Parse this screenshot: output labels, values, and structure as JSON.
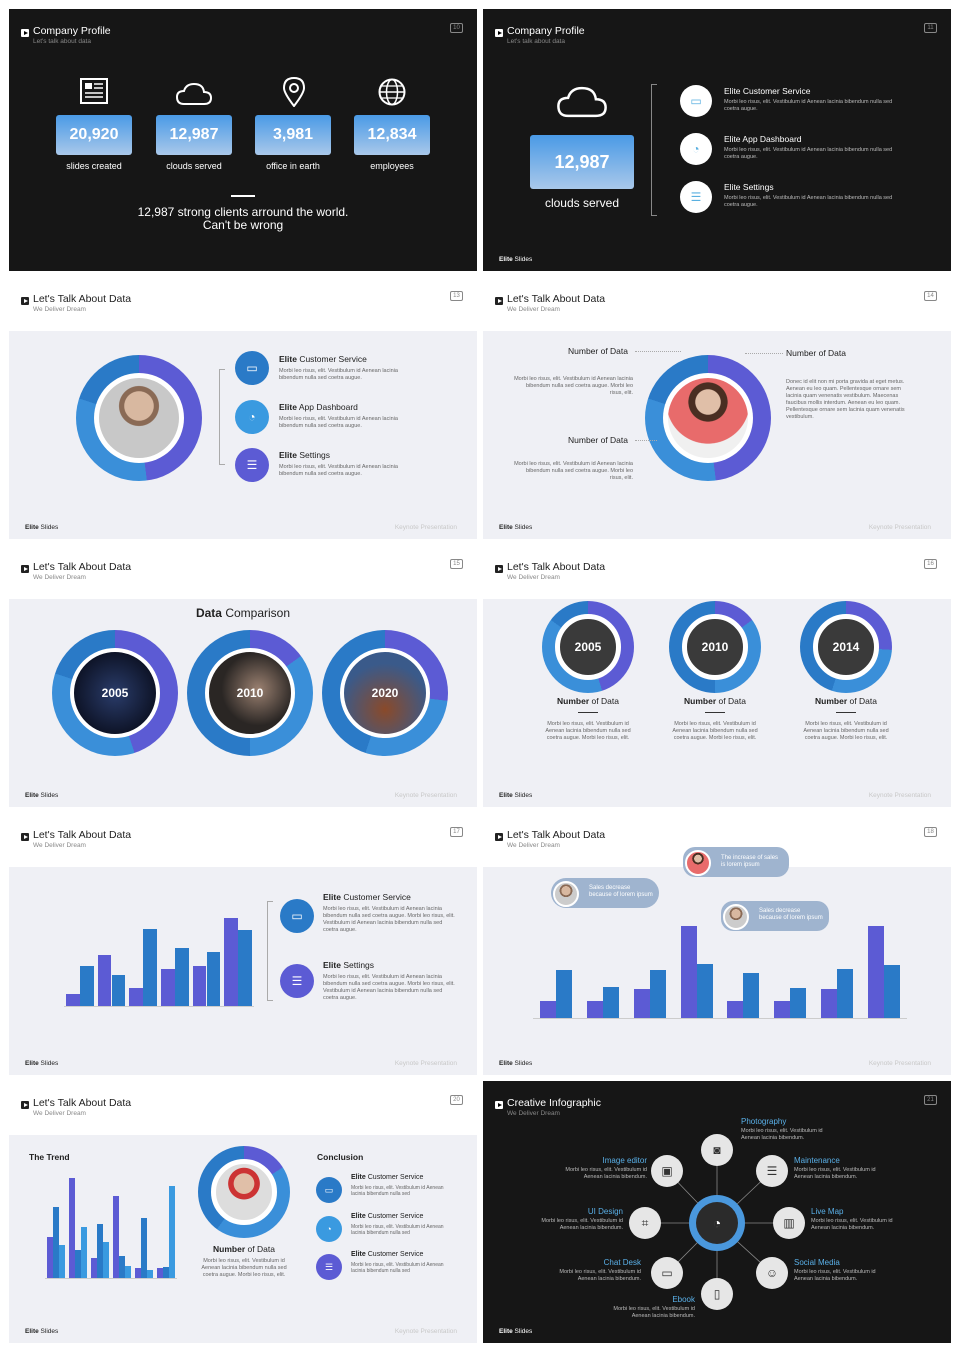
{
  "brand": {
    "name_bold": "Elite",
    "name_rest": " Slides",
    "keynote": "Keynote Presentation"
  },
  "s1": {
    "title": "Company Profile",
    "subtitle": "Let's talk about data",
    "page": "10",
    "stats": [
      {
        "value": "20,920",
        "label": "slides created",
        "icon": "newspaper-icon"
      },
      {
        "value": "12,987",
        "label": "clouds served",
        "icon": "cloud-icon"
      },
      {
        "value": "3,981",
        "label": "office in earth",
        "icon": "map-pin-icon"
      },
      {
        "value": "12,834",
        "label": "employees",
        "icon": "globe-icon"
      }
    ],
    "line1": "12,987 strong clients arround the world.",
    "line2": "Can't be wrong"
  },
  "s2": {
    "title": "Company Profile",
    "subtitle": "Let's talk about data",
    "page": "11",
    "value": "12,987",
    "label": "clouds served",
    "items": [
      {
        "title": "Elite Customer Service",
        "desc": "Morbi leo risus, elit. Vestibulum id Aenean lacinia bibendum nulla sed coetra augue."
      },
      {
        "title": "Elite App Dashboard",
        "desc": "Morbi leo risus, elit. Vestibulum id Aenean lacinia bibendum nulla sed coetra augue."
      },
      {
        "title": "Elite Settings",
        "desc": "Morbi leo risus, elit. Vestibulum id Aenean lacinia bibendum nulla sed coetra augue."
      }
    ]
  },
  "s3": {
    "title": "Let's Talk About Data",
    "subtitle": "We Deliver Dream",
    "page": "13",
    "items": [
      {
        "bold": "Elite",
        "rest": " Customer Service",
        "desc": "Morbi leo risus, elit. Vestibulum id Aenean lacinia bibendum nulla sed coetra augue."
      },
      {
        "bold": "Elite",
        "rest": " App Dashboard",
        "desc": "Morbi leo risus, elit. Vestibulum id Aenean lacinia bibendum nulla sed coetra augue."
      },
      {
        "bold": "Elite",
        "rest": " Settings",
        "desc": "Morbi leo risus, elit. Vestibulum id Aenean lacinia bibendum nulla sed coetra augue."
      }
    ]
  },
  "s4": {
    "title": "Let's Talk About Data",
    "subtitle": "We Deliver Dream",
    "page": "14",
    "label_a": "Number of Data",
    "label_b": "Number of Data",
    "label_c": "Number of Data",
    "desc_a": "Morbi leo risus, elit. Vestibulum id Aenean lacinia bibendum nulla sed coetra augue. Morbi leo risus, elit.",
    "desc_b": "Donec id elit non mi porta gravida at eget metus. Aenean eu leo quam. Pellentesque ornare sem lacinia quam venenatis vestibulum. Maecenas faucibus mollis interdum. Aenean eu leo quam. Pellentesque ornare sem lacinia quam venenatis vestibulum.",
    "desc_c": "Morbi leo risus, elit. Vestibulum id Aenean lacinia bibendum nulla sed coetra augue. Morbi leo risus, elit."
  },
  "s5": {
    "title": "Let's Talk About Data",
    "subtitle": "We Deliver Dream",
    "page": "15",
    "heading_bold": "Data",
    "heading_rest": " Comparison",
    "years": [
      "2005",
      "2010",
      "2020"
    ]
  },
  "s6": {
    "title": "Let's Talk About Data",
    "subtitle": "We Deliver Dream",
    "page": "16",
    "years": [
      "2005",
      "2010",
      "2014"
    ],
    "label_bold": "Number",
    "label_rest": " of Data",
    "desc": "Morbi leo risus, elit. Vestibulum id Aenean lacinia bibendum nulla sed coetra augue. Morbi leo risus, elit."
  },
  "s7": {
    "title": "Let's Talk About Data",
    "subtitle": "We Deliver Dream",
    "page": "17",
    "items": [
      {
        "bold": "Elite",
        "rest": " Customer Service",
        "desc": "Morbi leo risus, elit. Vestibulum id Aenean lacinia bibendum nulla sed coetra augue. Morbi leo risus, elit. Vestibulum id Aenean lacinia bibendum nulla sed coetra augue."
      },
      {
        "bold": "Elite",
        "rest": " Settings",
        "desc": "Morbi leo risus, elit. Vestibulum id Aenean lacinia bibendum nulla sed coetra augue. Morbi leo risus, elit. Vestibulum id Aenean lacinia bibendum nulla sed coetra augue."
      }
    ]
  },
  "s8": {
    "title": "Let's Talk About Data",
    "subtitle": "We Deliver Dream",
    "page": "18",
    "tag1": "Sales decrease because of lorem ipsum",
    "tag2": "The increase of sales is lorem ipsum",
    "tag3": "Sales decrease because of lorem ipsum"
  },
  "s9": {
    "title": "Let's Talk About Data",
    "subtitle": "We Deliver Dream",
    "page": "20",
    "trend": "The Trend",
    "label_bold": "Number",
    "label_rest": " of Data",
    "desc": "Morbi leo risus, elit. Vestibulum id Aenean lacinia bibendum nulla sed coetra augue. Morbi leo risus, elit.",
    "conclusion": "Conclusion",
    "items": [
      {
        "bold": "Elite",
        "rest": " Customer Service",
        "desc": "Morbi leo risus, elit. Vestibulum id Aenean lacinia bibendum nulla sed"
      },
      {
        "bold": "Elite",
        "rest": " Customer Service",
        "desc": "Morbi leo risus, elit. Vestibulum id Aenean lacinia bibendum nulla sed"
      },
      {
        "bold": "Elite",
        "rest": " Customer Service",
        "desc": "Morbi leo risus, elit. Vestibulum id Aenean lacinia bibendum nulla sed"
      }
    ]
  },
  "s10": {
    "title": "Creative Infographic",
    "subtitle": "We Deliver Dream",
    "page": "21",
    "nodes": [
      {
        "label": "Photography",
        "desc": "Morbi leo risus, elit. Vestibulum id Aenean lacinia bibendum.",
        "icon": "camera-icon"
      },
      {
        "label": "Maintenance",
        "desc": "Morbi leo risus, elit. Vestibulum id Aenean lacinia bibendum.",
        "icon": "sliders-icon"
      },
      {
        "label": "Live Map",
        "desc": "Morbi leo risus, elit. Vestibulum id Aenean lacinia bibendum.",
        "icon": "map-icon"
      },
      {
        "label": "Social Media",
        "desc": "Morbi leo risus, elit. Vestibulum id Aenean lacinia bibendum.",
        "icon": "user-icon"
      },
      {
        "label": "Ebook",
        "desc": "Morbi leo risus, elit. Vestibulum id Aenean lacinia bibendum.",
        "icon": "book-icon"
      },
      {
        "label": "Chat Desk",
        "desc": "Morbi leo risus, elit. Vestibulum id Aenean lacinia bibendum.",
        "icon": "chat-icon"
      },
      {
        "label": "UI Design",
        "desc": "Morbi leo risus, elit. Vestibulum id Aenean lacinia bibendum.",
        "icon": "crop-icon"
      },
      {
        "label": "Image editor",
        "desc": "Morbi leo risus, elit. Vestibulum id Aenean lacinia bibendum.",
        "icon": "image-icon"
      }
    ]
  },
  "chart_data": [
    {
      "type": "bar",
      "slide": "17",
      "series": [
        {
          "values": [
            1.2,
            5.2,
            1.8,
            3.8,
            4.1,
            9.0
          ]
        },
        {
          "values": [
            4.1,
            3.2,
            7.9,
            6.0,
            5.5,
            7.8
          ]
        }
      ],
      "ylim": [
        0,
        12
      ]
    },
    {
      "type": "bar",
      "slide": "18",
      "series": [
        {
          "values": [
            1.5,
            1.5,
            2.5,
            8.0,
            1.5,
            1.5,
            2.5,
            8.0
          ]
        },
        {
          "values": [
            4.2,
            2.7,
            4.2,
            4.7,
            3.9,
            2.6,
            4.3,
            4.6
          ]
        }
      ],
      "ylim": [
        0,
        10
      ]
    },
    {
      "type": "bar",
      "slide": "20",
      "series": [
        {
          "values": [
            4.0,
            9.8,
            2.0,
            8.0,
            1.0,
            1.0
          ]
        },
        {
          "values": [
            7.0,
            2.7,
            5.3,
            2.2,
            5.9,
            1.1
          ]
        },
        {
          "values": [
            3.2,
            5.0,
            3.5,
            1.2,
            0.8,
            9.0
          ]
        }
      ],
      "ylim": [
        0,
        10
      ]
    }
  ]
}
